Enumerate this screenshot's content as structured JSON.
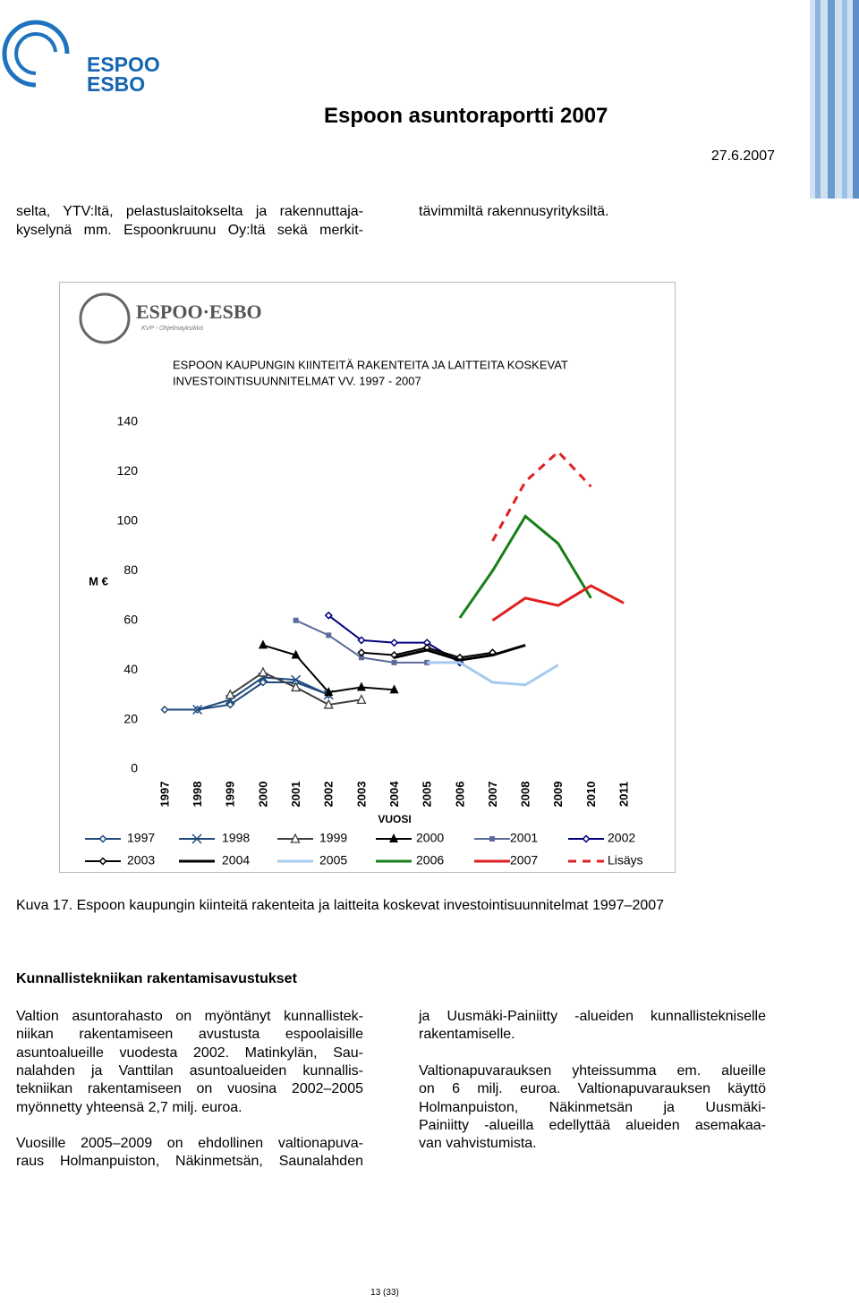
{
  "header": {
    "logo_line1": "ESPOO",
    "logo_line2": "ESBO",
    "title": "Espoon asuntoraportti 2007",
    "date": "27.6.2007"
  },
  "intro": {
    "left": [
      "selta, YTV:ltä, pelastuslaitokselta ja rakennuttaja-",
      "kyselynä mm. Espoonkruunu Oy:ltä sekä merkit-"
    ],
    "right": [
      "tävimmiltä rakennusyrityksiltä."
    ]
  },
  "chart_data": {
    "type": "line",
    "logo_text": "ESPOO·ESBO",
    "logo_subtext": "KVP - Ohjelmayksikkö",
    "title": [
      "ESPOON KAUPUNGIN KIINTEITÄ RAKENTEITA JA LAITTEITA KOSKEVAT",
      "INVESTOINTISUUNNITELMAT VV. 1997 - 2007"
    ],
    "x_label": "VUOSI",
    "y_label": "M €",
    "categories": [
      "1997",
      "1998",
      "1999",
      "2000",
      "2001",
      "2002",
      "2003",
      "2004",
      "2005",
      "2006",
      "2007",
      "2008",
      "2009",
      "2010",
      "2011"
    ],
    "ylim": [
      0,
      140
    ],
    "yticks": [
      0,
      20,
      40,
      60,
      80,
      100,
      120,
      140
    ],
    "grid": false,
    "series": [
      {
        "name": "1997",
        "color": "#1f497d",
        "marker": "diamond",
        "width": 2,
        "values": [
          24,
          24,
          26,
          35,
          35,
          30,
          null,
          null,
          null,
          null,
          null,
          null,
          null,
          null,
          null
        ]
      },
      {
        "name": "1998",
        "color": "#1f497d",
        "marker": "x",
        "width": 2,
        "values": [
          null,
          24,
          28,
          37,
          36,
          30,
          null,
          null,
          null,
          null,
          null,
          null,
          null,
          null,
          null
        ]
      },
      {
        "name": "1999",
        "color": "#404040",
        "marker": "triangle-open",
        "width": 2,
        "values": [
          null,
          null,
          30,
          39,
          33,
          26,
          28,
          null,
          null,
          null,
          null,
          null,
          null,
          null,
          null
        ]
      },
      {
        "name": "2000",
        "color": "#000000",
        "marker": "triangle",
        "width": 2,
        "values": [
          null,
          null,
          null,
          50,
          46,
          31,
          33,
          32,
          null,
          null,
          null,
          null,
          null,
          null,
          null
        ]
      },
      {
        "name": "2001",
        "color": "#5b6b9a",
        "marker": "square",
        "width": 2,
        "values": [
          null,
          null,
          null,
          null,
          60,
          54,
          45,
          43,
          43,
          null,
          null,
          null,
          null,
          null,
          null
        ]
      },
      {
        "name": "2002",
        "color": "#000080",
        "marker": "diamond",
        "width": 2,
        "values": [
          null,
          null,
          null,
          null,
          null,
          62,
          52,
          51,
          51,
          43,
          null,
          null,
          null,
          null,
          null
        ]
      },
      {
        "name": "2003",
        "color": "#000000",
        "marker": "diamond",
        "width": 2,
        "values": [
          null,
          null,
          null,
          null,
          null,
          null,
          47,
          46,
          49,
          45,
          47,
          null,
          null,
          null,
          null
        ]
      },
      {
        "name": "2004",
        "color": "#000000",
        "marker": "none",
        "width": 3,
        "values": [
          null,
          null,
          null,
          null,
          null,
          null,
          null,
          45,
          48,
          44,
          46,
          50,
          null,
          null,
          null
        ]
      },
      {
        "name": "2005",
        "color": "#a6cbef",
        "marker": "none",
        "width": 3,
        "values": [
          null,
          null,
          null,
          null,
          null,
          null,
          null,
          null,
          43,
          43,
          35,
          34,
          42,
          null,
          null
        ]
      },
      {
        "name": "2006",
        "color": "#178017",
        "marker": "none",
        "width": 3,
        "values": [
          null,
          null,
          null,
          null,
          null,
          null,
          null,
          null,
          null,
          61,
          80,
          102,
          91,
          69,
          null
        ]
      },
      {
        "name": "2007",
        "color": "#e02020",
        "marker": "none",
        "width": 3,
        "values": [
          null,
          null,
          null,
          null,
          null,
          null,
          null,
          null,
          null,
          null,
          60,
          69,
          66,
          74,
          67
        ]
      },
      {
        "name": "Lisäys",
        "color": "#e02020",
        "marker": "none",
        "width": 3,
        "dashed": true,
        "values": [
          null,
          null,
          null,
          null,
          null,
          null,
          null,
          null,
          null,
          null,
          92,
          116,
          128,
          114,
          null
        ]
      }
    ]
  },
  "caption": "Kuva 17. Espoon kaupungin kiinteitä rakenteita ja laitteita koskevat investointisuunnitelmat 1997–2007",
  "section": {
    "heading": "Kunnallistekniikan rakentamisavustukset",
    "left": [
      [
        "Valtion asuntorahasto on myöntänyt kunnallistek-",
        "niikan rakentamiseen avustusta espoolaisille",
        "asuntoalueille vuodesta 2002. Matinkylän, Sau-",
        "nalahden ja Vanttilan asuntoalueiden kunnallis-",
        "tekniikan rakentamiseen on vuosina 2002–2005",
        "myönnetty yhteensä 2,7 milj. euroa."
      ],
      [
        "Vuosille 2005–2009 on ehdollinen valtionapuva-",
        "raus Holmanpuiston, Näkinmetsän, Saunalahden"
      ]
    ],
    "right": [
      [
        "ja Uusmäki-Painiitty -alueiden kunnallistekniselle",
        "rakentamiselle."
      ],
      [
        "Valtionapuvarauksen yhteissumma em. alueille",
        "on 6 milj. euroa. Valtionapuvarauksen käyttö",
        "Holmanpuiston, Näkinmetsän ja Uusmäki-",
        "Painiitty -alueilla edellyttää alueiden asemakaa-",
        "van vahvistumista."
      ]
    ]
  },
  "footer": {
    "page": "13 (33)"
  }
}
